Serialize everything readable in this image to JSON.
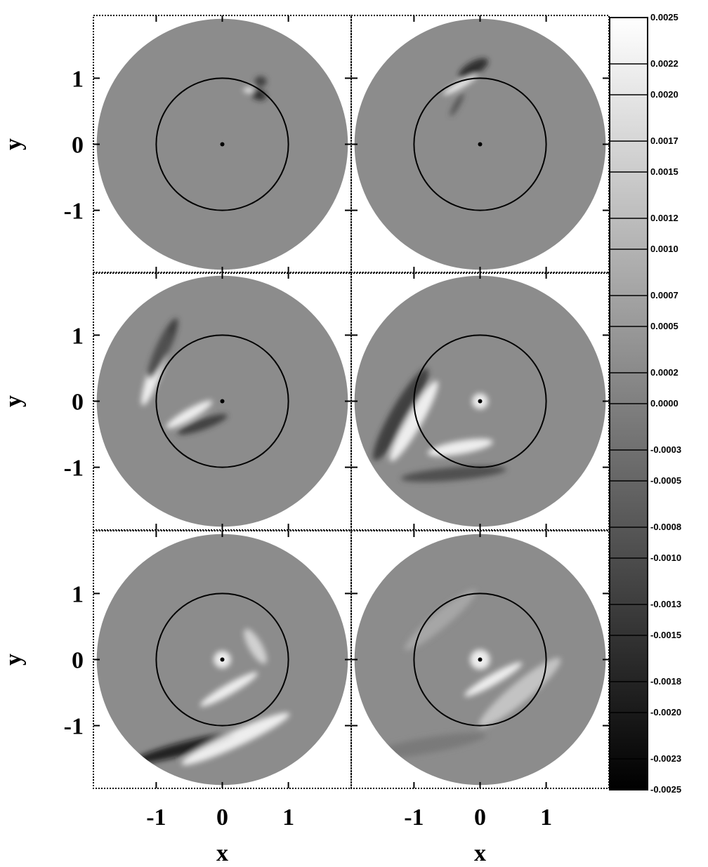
{
  "chart_data": {
    "type": "heatmap-grid",
    "xlabel": "x",
    "ylabel": "y",
    "xlim": [
      -1.95,
      1.95
    ],
    "ylim": [
      -1.95,
      1.95
    ],
    "xticks": [
      -1,
      0,
      1
    ],
    "yticks": [
      -1,
      0,
      1
    ],
    "rows": 3,
    "cols": 2,
    "colorbar": {
      "lim": [
        -0.0025,
        0.0025
      ],
      "ticks": [
        {
          "value": 0.0025,
          "label": "0.0025"
        },
        {
          "value": 0.0022,
          "label": "0.0022"
        },
        {
          "value": 0.002,
          "label": "0.0020"
        },
        {
          "value": 0.0017,
          "label": "0.0017"
        },
        {
          "value": 0.0015,
          "label": "0.0015"
        },
        {
          "value": 0.0012,
          "label": "0.0012"
        },
        {
          "value": 0.001,
          "label": "0.0010"
        },
        {
          "value": 0.0007,
          "label": "0.0007"
        },
        {
          "value": 0.0005,
          "label": "0.0005"
        },
        {
          "value": 0.0002,
          "label": "0.0002"
        },
        {
          "value": 0,
          "label": "0.0000"
        },
        {
          "value": -0.0003,
          "label": "-0.0003"
        },
        {
          "value": -0.0005,
          "label": "-0.0005"
        },
        {
          "value": -0.0008,
          "label": "-0.0008"
        },
        {
          "value": -0.001,
          "label": "-0.0010"
        },
        {
          "value": -0.0013,
          "label": "-0.0013"
        },
        {
          "value": -0.0015,
          "label": "-0.0015"
        },
        {
          "value": -0.0018,
          "label": "-0.0018"
        },
        {
          "value": -0.002,
          "label": "-0.0020"
        },
        {
          "value": -0.0023,
          "label": "-0.0023"
        },
        {
          "value": -0.0025,
          "label": "-0.0025"
        }
      ]
    }
  }
}
